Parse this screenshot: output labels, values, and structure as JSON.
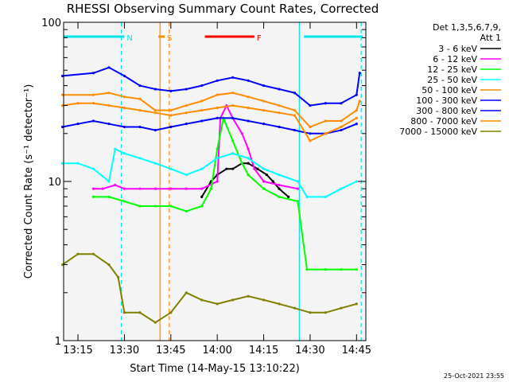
{
  "chart_data": {
    "type": "line",
    "title": "RHESSI Observing Summary Count Rates, Corrected",
    "xlabel": "Start Time (14-May-15 13:10:22)",
    "ylabel": "Corrected Count Rate (s⁻¹ detector⁻¹)",
    "x_start": "13:10:22",
    "x_end": "14:48:00",
    "ylim": [
      1,
      100
    ],
    "y_scale": "log",
    "x_ticks": [
      "13:15",
      "13:30",
      "13:45",
      "14:00",
      "14:15",
      "14:30",
      "14:45"
    ],
    "y_ticks": [
      "1",
      "10",
      "100"
    ],
    "legend_header": [
      "Det 1,3,5,6,7,9,",
      "Att 1"
    ],
    "timestamp": "25-Oct-2021 23:55",
    "flag_labels": [
      {
        "text": "N",
        "color": "#00e5e5"
      },
      {
        "text": "S",
        "color": "#ff8c00"
      },
      {
        "text": "F",
        "color": "#ff0000"
      }
    ],
    "flag_bars": [
      {
        "start": "13:10:22",
        "end": "13:30:00",
        "color": "#00e5e5",
        "label": "N"
      },
      {
        "start": "14:28:00",
        "end": "14:47:00",
        "color": "#00e5e5"
      },
      {
        "start": "13:41:00",
        "end": "13:43:00",
        "color": "#ff8c00",
        "label": "S"
      },
      {
        "start": "13:56:00",
        "end": "14:12:00",
        "color": "#ff0000",
        "label": "F"
      }
    ],
    "data_gaps": [
      {
        "start": "13:42:00",
        "end": "13:44:00"
      }
    ],
    "vertical_markers": [
      {
        "time": "13:29:00",
        "color": "#00e5e5",
        "style": "dashed"
      },
      {
        "time": "13:41:30",
        "color": "#ff8c00",
        "style": "solid"
      },
      {
        "time": "13:44:30",
        "color": "#ff8c00",
        "style": "dashed"
      },
      {
        "time": "14:26:30",
        "color": "#00e5e5",
        "style": "solid"
      },
      {
        "time": "14:46:30",
        "color": "#00e5e5",
        "style": "dashed"
      }
    ],
    "series": [
      {
        "name": "3 - 6 keV",
        "color": "#000000",
        "x": [
          "13:55",
          "13:58",
          "14:00",
          "14:03",
          "14:05",
          "14:08",
          "14:10",
          "14:13",
          "14:16",
          "14:18",
          "14:20",
          "14:23"
        ],
        "y": [
          8,
          10,
          11,
          12,
          12,
          13,
          13,
          12,
          11,
          10,
          9,
          8
        ]
      },
      {
        "name": "6 - 12 keV",
        "color": "#ff00ff",
        "x": [
          "13:20",
          "13:23",
          "13:27",
          "13:30",
          "13:35",
          "13:40",
          "13:45",
          "13:50",
          "13:55",
          "14:00",
          "14:01",
          "14:03",
          "14:05",
          "14:08",
          "14:10",
          "14:12",
          "14:15",
          "14:20",
          "14:26"
        ],
        "y": [
          9,
          9,
          9.5,
          9,
          9,
          9,
          9,
          9,
          9,
          10,
          25,
          30,
          25,
          20,
          16,
          12,
          10,
          9.5,
          9
        ]
      },
      {
        "name": "12 - 25 keV",
        "color": "#00ff00",
        "x": [
          "13:20",
          "13:25",
          "13:30",
          "13:35",
          "13:40",
          "13:45",
          "13:50",
          "13:55",
          "13:58",
          "14:00",
          "14:02",
          "14:05",
          "14:08",
          "14:10",
          "14:15",
          "14:20",
          "14:26",
          "14:29",
          "14:35",
          "14:40",
          "14:45"
        ],
        "y": [
          8,
          8,
          7.5,
          7,
          7,
          7,
          6.5,
          7,
          9,
          16,
          25,
          18,
          13,
          11,
          9,
          8,
          7.5,
          2.8,
          2.8,
          2.8,
          2.8
        ]
      },
      {
        "name": "25 - 50 keV",
        "color": "#00ffff",
        "x": [
          "13:10",
          "13:15",
          "13:20",
          "13:25",
          "13:27",
          "13:30",
          "13:35",
          "13:40",
          "13:45",
          "13:50",
          "13:55",
          "14:00",
          "14:05",
          "14:10",
          "14:15",
          "14:20",
          "14:26",
          "14:29",
          "14:35",
          "14:40",
          "14:45"
        ],
        "y": [
          13,
          13,
          12,
          10,
          16,
          15,
          14,
          13,
          12,
          11,
          12,
          14,
          15,
          14,
          12,
          11,
          10,
          8,
          8,
          9,
          10
        ]
      },
      {
        "name": "50 - 100 keV",
        "color": "#ff8c00",
        "x": [
          "13:10",
          "13:20",
          "13:25",
          "13:30",
          "13:35",
          "13:40",
          "13:45",
          "13:50",
          "13:55",
          "14:00",
          "14:05",
          "14:10",
          "14:15",
          "14:20",
          "14:25",
          "14:30",
          "14:35",
          "14:40",
          "14:45",
          "14:46"
        ],
        "y": [
          35,
          35,
          36,
          34,
          33,
          28,
          28,
          30,
          32,
          35,
          36,
          34,
          32,
          30,
          28,
          22,
          24,
          24,
          28,
          32
        ]
      },
      {
        "name": "100 - 300 keV",
        "color": "#0000ff",
        "x": [
          "13:10",
          "13:20",
          "13:25",
          "13:30",
          "13:35",
          "13:40",
          "13:45",
          "13:50",
          "13:55",
          "14:00",
          "14:05",
          "14:10",
          "14:15",
          "14:20",
          "14:25",
          "14:30",
          "14:35",
          "14:40",
          "14:45",
          "14:46"
        ],
        "y": [
          46,
          48,
          52,
          46,
          40,
          38,
          37,
          38,
          40,
          43,
          45,
          43,
          40,
          38,
          36,
          30,
          31,
          31,
          35,
          48
        ]
      },
      {
        "name": "300 - 800 keV",
        "color": "#0000ff",
        "x": [
          "13:10",
          "13:15",
          "13:20",
          "13:25",
          "13:30",
          "13:35",
          "13:40",
          "13:45",
          "13:50",
          "13:55",
          "14:00",
          "14:05",
          "14:10",
          "14:15",
          "14:20",
          "14:25",
          "14:30",
          "14:35",
          "14:40",
          "14:45"
        ],
        "y": [
          22,
          23,
          24,
          23,
          22,
          22,
          21,
          22,
          23,
          24,
          25,
          25,
          24,
          23,
          22,
          21,
          20,
          20,
          21,
          23
        ]
      },
      {
        "name": "800 - 7000 keV",
        "color": "#ff8c00",
        "x": [
          "13:10",
          "13:15",
          "13:20",
          "13:25",
          "13:30",
          "13:35",
          "13:40",
          "13:45",
          "13:50",
          "13:55",
          "14:00",
          "14:05",
          "14:10",
          "14:15",
          "14:20",
          "14:25",
          "14:30",
          "14:35",
          "14:40",
          "14:45"
        ],
        "y": [
          30,
          31,
          31,
          30,
          29,
          28,
          27,
          26,
          27,
          28,
          29,
          30,
          29,
          28,
          27,
          26,
          18,
          20,
          22,
          25
        ]
      },
      {
        "name": "7000 - 15000 keV",
        "color": "#808000",
        "x": [
          "13:10",
          "13:15",
          "13:20",
          "13:25",
          "13:28",
          "13:30",
          "13:35",
          "13:40",
          "13:45",
          "13:50",
          "13:55",
          "14:00",
          "14:05",
          "14:10",
          "14:15",
          "14:20",
          "14:25",
          "14:30",
          "14:35",
          "14:40",
          "14:45"
        ],
        "y": [
          3,
          3.5,
          3.5,
          3,
          2.5,
          1.5,
          1.5,
          1.3,
          1.5,
          2,
          1.8,
          1.7,
          1.8,
          1.9,
          1.8,
          1.7,
          1.6,
          1.5,
          1.5,
          1.6,
          1.7
        ]
      }
    ]
  }
}
